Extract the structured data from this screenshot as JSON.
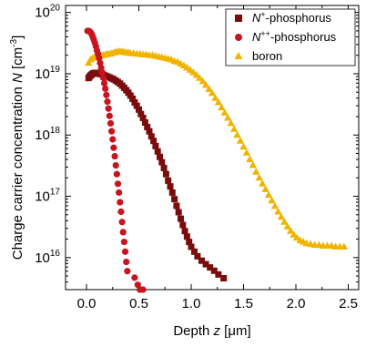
{
  "chart_data": {
    "type": "scatter",
    "xlabel_parts": [
      "Depth ",
      "z",
      " [",
      "μ",
      "m]"
    ],
    "ylabel_parts": [
      "Charge carrier concentration ",
      "N",
      " [cm",
      "-3",
      "]"
    ],
    "xlim": [
      -0.2,
      2.6
    ],
    "ylim": [
      3000000000000000.0,
      1.3e+20
    ],
    "yscale": "log",
    "x_ticks": [
      0.0,
      0.5,
      1.0,
      1.5,
      2.0,
      2.5
    ],
    "x_tick_labels": [
      "0.0",
      "0.5",
      "1.0",
      "1.5",
      "2.0",
      "2.5"
    ],
    "y_ticks": [
      1e+16,
      1e+17,
      1e+18,
      1e+19,
      1e+20
    ],
    "y_tick_labels": [
      {
        "base": "10",
        "exp": "16"
      },
      {
        "base": "10",
        "exp": "17"
      },
      {
        "base": "10",
        "exp": "18"
      },
      {
        "base": "10",
        "exp": "19"
      },
      {
        "base": "10",
        "exp": "20"
      }
    ],
    "grid": false,
    "legend_position": "top-right",
    "series": [
      {
        "name_parts": [
          "N",
          "+",
          "-phosphorus"
        ],
        "marker": "square",
        "color": "#7a0c0c",
        "x": [
          0.02,
          0.03,
          0.04,
          0.05,
          0.06,
          0.07,
          0.08,
          0.09,
          0.1,
          0.12,
          0.14,
          0.16,
          0.18,
          0.2,
          0.22,
          0.24,
          0.26,
          0.28,
          0.3,
          0.32,
          0.34,
          0.36,
          0.38,
          0.4,
          0.42,
          0.44,
          0.46,
          0.48,
          0.5,
          0.52,
          0.54,
          0.56,
          0.58,
          0.6,
          0.62,
          0.64,
          0.66,
          0.68,
          0.7,
          0.72,
          0.74,
          0.76,
          0.78,
          0.8,
          0.82,
          0.84,
          0.86,
          0.88,
          0.9,
          0.92,
          0.94,
          0.96,
          0.98,
          1.0,
          1.03,
          1.06,
          1.1,
          1.14,
          1.18,
          1.22,
          1.26,
          1.31
        ],
        "y": [
          8.5e+18,
          9e+18,
          9.4e+18,
          9.7e+18,
          1e+19,
          1.02e+19,
          1.03e+19,
          1.03e+19,
          1.02e+19,
          1e+19,
          9.8e+18,
          9.6e+18,
          9.3e+18,
          9e+18,
          8.7e+18,
          8.4e+18,
          8.1e+18,
          7.7e+18,
          7.3e+18,
          6.9e+18,
          6.4e+18,
          5.9e+18,
          5.4e+18,
          4.9e+18,
          4.4e+18,
          3.9e+18,
          3.4e+18,
          3e+18,
          2.6e+18,
          2.2e+18,
          1.9e+18,
          1.6e+18,
          1.35e+18,
          1.15e+18,
          9.5e+17,
          8e+17,
          6.6e+17,
          5.4e+17,
          4.4e+17,
          3.6e+17,
          2.9e+17,
          2.3e+17,
          1.8e+17,
          1.45e+17,
          1.15e+17,
          9e+16,
          7e+16,
          5.5e+16,
          4.3e+16,
          3.4e+16,
          2.7e+16,
          2.2e+16,
          1.8e+16,
          1.5e+16,
          1.25e+16,
          1.05e+16,
          8900000000000000.0,
          7800000000000000.0,
          6900000000000000.0,
          6100000000000000.0,
          5300000000000000.0,
          4600000000000000.0
        ]
      },
      {
        "name_parts": [
          "N",
          "++",
          "-phosphorus"
        ],
        "marker": "circle",
        "color": "#c8141e",
        "x": [
          0.01,
          0.02,
          0.03,
          0.04,
          0.05,
          0.06,
          0.07,
          0.08,
          0.09,
          0.1,
          0.11,
          0.12,
          0.13,
          0.14,
          0.15,
          0.16,
          0.17,
          0.18,
          0.19,
          0.2,
          0.21,
          0.22,
          0.23,
          0.24,
          0.25,
          0.26,
          0.27,
          0.28,
          0.29,
          0.3,
          0.31,
          0.32,
          0.33,
          0.34,
          0.35,
          0.36,
          0.37,
          0.38,
          0.39,
          0.46,
          0.49,
          0.51,
          0.54
        ],
        "y": [
          5e+19,
          5e+19,
          4.9e+19,
          4.7e+19,
          4.4e+19,
          4e+19,
          3.6e+19,
          3.2e+19,
          2.8e+19,
          2.4e+19,
          2.1e+19,
          1.8e+19,
          1.5e+19,
          1.25e+19,
          1.05e+19,
          8.6e+18,
          7e+18,
          5.7e+18,
          4.5e+18,
          3.5e+18,
          2.7e+18,
          2.05e+18,
          1.55e+18,
          1.15e+18,
          8.5e+17,
          6.2e+17,
          4.5e+17,
          3.2e+17,
          2.3e+17,
          1.6e+17,
          1.15e+17,
          8e+16,
          5.6e+16,
          3.8e+16,
          2.6e+16,
          1.8e+16,
          1.25e+16,
          8500000000000000.0,
          6000000000000000.0,
          4700000000000000.0,
          3600000000000000.0,
          3000000000000000.0,
          3000000000000000.0
        ]
      },
      {
        "name_parts": [
          "boron"
        ],
        "marker": "triangle",
        "color": "#f0b400",
        "x": [
          0.02,
          0.04,
          0.06,
          0.08,
          0.1,
          0.12,
          0.14,
          0.16,
          0.18,
          0.2,
          0.22,
          0.24,
          0.26,
          0.28,
          0.3,
          0.32,
          0.34,
          0.36,
          0.38,
          0.4,
          0.42,
          0.45,
          0.48,
          0.51,
          0.54,
          0.57,
          0.6,
          0.63,
          0.66,
          0.69,
          0.72,
          0.75,
          0.78,
          0.81,
          0.84,
          0.87,
          0.9,
          0.93,
          0.96,
          0.99,
          1.02,
          1.05,
          1.08,
          1.11,
          1.14,
          1.17,
          1.2,
          1.23,
          1.26,
          1.29,
          1.32,
          1.35,
          1.38,
          1.41,
          1.44,
          1.47,
          1.5,
          1.53,
          1.56,
          1.59,
          1.62,
          1.65,
          1.68,
          1.71,
          1.74,
          1.77,
          1.8,
          1.83,
          1.86,
          1.89,
          1.92,
          1.95,
          1.98,
          2.01,
          2.04,
          2.07,
          2.1,
          2.14,
          2.18,
          2.22,
          2.26,
          2.3,
          2.34,
          2.38,
          2.42,
          2.46
        ],
        "y": [
          1.5e+19,
          1.7e+19,
          1.8e+19,
          1.85e+19,
          1.9e+19,
          1.95e+19,
          2e+19,
          2e+19,
          2.05e+19,
          2.1e+19,
          2.1e+19,
          2.15e+19,
          2.2e+19,
          2.25e+19,
          2.3e+19,
          2.3e+19,
          2.3e+19,
          2.25e+19,
          2.2e+19,
          2.2e+19,
          2.15e+19,
          2.15e+19,
          2.1e+19,
          2.1e+19,
          2.05e+19,
          2.05e+19,
          2e+19,
          2e+19,
          1.95e+19,
          1.9e+19,
          1.85e+19,
          1.8e+19,
          1.75e+19,
          1.7e+19,
          1.6e+19,
          1.55e+19,
          1.45e+19,
          1.35e+19,
          1.25e+19,
          1.15e+19,
          1.05e+19,
          9.5e+18,
          8.5e+18,
          7.5e+18,
          6.5e+18,
          5.6e+18,
          4.8e+18,
          4e+18,
          3.4e+18,
          2.8e+18,
          2.3e+18,
          1.9e+18,
          1.55e+18,
          1.25e+18,
          1e+18,
          8e+17,
          6.4e+17,
          5.1e+17,
          4e+17,
          3.2e+17,
          2.5e+17,
          2e+17,
          1.6e+17,
          1.3e+17,
          1.05e+17,
          8.5e+16,
          6.9e+16,
          5.6e+16,
          4.6e+16,
          3.8e+16,
          3.2e+16,
          2.7e+16,
          2.35e+16,
          2.1e+16,
          1.9e+16,
          1.8e+16,
          1.7e+16,
          1.65e+16,
          1.6e+16,
          1.6e+16,
          1.55e+16,
          1.55e+16,
          1.55e+16,
          1.5e+16,
          1.5e+16,
          1.5e+16
        ]
      }
    ]
  }
}
